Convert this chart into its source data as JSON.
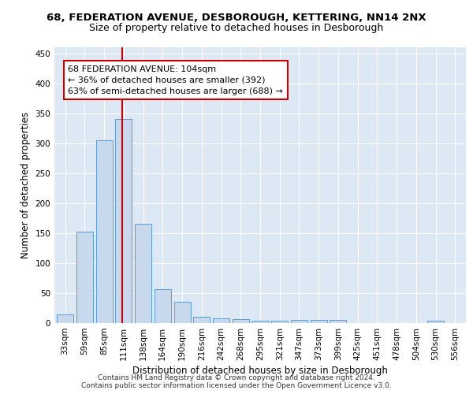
{
  "title_line1": "68, FEDERATION AVENUE, DESBOROUGH, KETTERING, NN14 2NX",
  "title_line2": "Size of property relative to detached houses in Desborough",
  "xlabel": "Distribution of detached houses by size in Desborough",
  "ylabel": "Number of detached properties",
  "categories": [
    "33sqm",
    "59sqm",
    "85sqm",
    "111sqm",
    "138sqm",
    "164sqm",
    "190sqm",
    "216sqm",
    "242sqm",
    "268sqm",
    "295sqm",
    "321sqm",
    "347sqm",
    "373sqm",
    "399sqm",
    "425sqm",
    "451sqm",
    "478sqm",
    "504sqm",
    "530sqm",
    "556sqm"
  ],
  "values": [
    15,
    153,
    305,
    340,
    165,
    57,
    35,
    10,
    8,
    6,
    4,
    4,
    5,
    5,
    5,
    0,
    0,
    0,
    0,
    4,
    0
  ],
  "bar_color": "#c9d9ed",
  "bar_edge_color": "#5b9bd5",
  "vline_color": "#cc0000",
  "vline_x": 2.93,
  "annotation_text": "68 FEDERATION AVENUE: 104sqm\n← 36% of detached houses are smaller (392)\n63% of semi-detached houses are larger (688) →",
  "annotation_box_color": "#ffffff",
  "annotation_box_edge": "#cc0000",
  "ylim": [
    0,
    460
  ],
  "yticks": [
    0,
    50,
    100,
    150,
    200,
    250,
    300,
    350,
    400,
    450
  ],
  "background_color": "#dde8f5",
  "grid_color": "#ffffff",
  "footer": "Contains HM Land Registry data © Crown copyright and database right 2024.\nContains public sector information licensed under the Open Government Licence v3.0.",
  "title_fontsize": 9.5,
  "subtitle_fontsize": 9,
  "xlabel_fontsize": 8.5,
  "ylabel_fontsize": 8.5,
  "tick_fontsize": 7.5,
  "annotation_fontsize": 8,
  "footer_fontsize": 6.5
}
